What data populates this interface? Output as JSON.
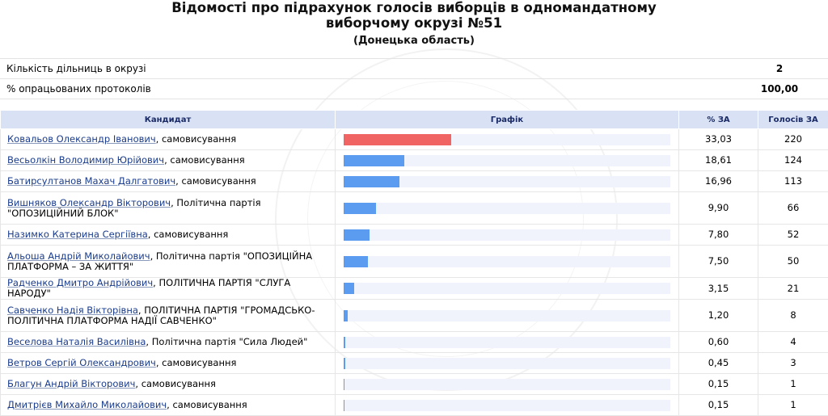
{
  "header": {
    "title": "Відомості про підрахунок голосів виборців в одномандатному виборчому окрузі №51",
    "subtitle": "(Донецька область)"
  },
  "summary": [
    {
      "label": "Кількість дільниць в окрузі",
      "value": "2"
    },
    {
      "label": "% опрацьованих протоколів",
      "value": "100,00"
    }
  ],
  "table": {
    "headers": [
      "Кандидат",
      "Графік",
      "% ЗА",
      "Голосів ЗА"
    ],
    "rows": [
      {
        "name": "Ковальов Олександр Іванович",
        "affiliation": ", самовисування",
        "percent": "33,03",
        "votes": "220",
        "share": 33.03,
        "leader": true
      },
      {
        "name": "Весьолкін Володимир Юрійович",
        "affiliation": ", самовисування",
        "percent": "18,61",
        "votes": "124",
        "share": 18.61
      },
      {
        "name": "Батирсултанов Махач Далгатович",
        "affiliation": ", самовисування",
        "percent": "16,96",
        "votes": "113",
        "share": 16.96
      },
      {
        "name": "Вишняков Олександр Вікторович",
        "affiliation": ", Політична партія \"ОПОЗИЦІЙНИЙ БЛОК\"",
        "percent": "9,90",
        "votes": "66",
        "share": 9.9
      },
      {
        "name": "Назимко Катерина Сергіївна",
        "affiliation": ", самовисування",
        "percent": "7,80",
        "votes": "52",
        "share": 7.8
      },
      {
        "name": "Альоша Андрій Миколайович",
        "affiliation": ", Політична партія \"ОПОЗИЦІЙНА ПЛАТФОРМА – ЗА ЖИТТЯ\"",
        "percent": "7,50",
        "votes": "50",
        "share": 7.5
      },
      {
        "name": "Радченко Дмитро Андрійович",
        "affiliation": ", ПОЛІТИЧНА ПАРТІЯ \"СЛУГА НАРОДУ\"",
        "percent": "3,15",
        "votes": "21",
        "share": 3.15
      },
      {
        "name": "Савченко Надія Вікторівна",
        "affiliation": ", ПОЛІТИЧНА ПАРТІЯ \"ГРОМАДСЬКО-ПОЛІТИЧНА ПЛАТФОРМА НАДІЇ САВЧЕНКО\"",
        "percent": "1,20",
        "votes": "8",
        "share": 1.2
      },
      {
        "name": "Веселова Наталія Василівна",
        "affiliation": ", Політична партія \"Сила Людей\"",
        "percent": "0,60",
        "votes": "4",
        "share": 0.6
      },
      {
        "name": "Ветров Сергій Олександрович",
        "affiliation": ", самовисування",
        "percent": "0,45",
        "votes": "3",
        "share": 0.45
      },
      {
        "name": "Благун Андрій Вікторович",
        "affiliation": ", самовисування",
        "percent": "0,15",
        "votes": "1",
        "share": 0.15
      },
      {
        "name": "Дмитрієв Михайло Миколайович",
        "affiliation": ", самовисування",
        "percent": "0,15",
        "votes": "1",
        "share": 0.15
      }
    ]
  },
  "colors": {
    "leader_bar": "#f06464",
    "bar": "#5b9cf0",
    "header_bg": "#d9e2f5"
  }
}
